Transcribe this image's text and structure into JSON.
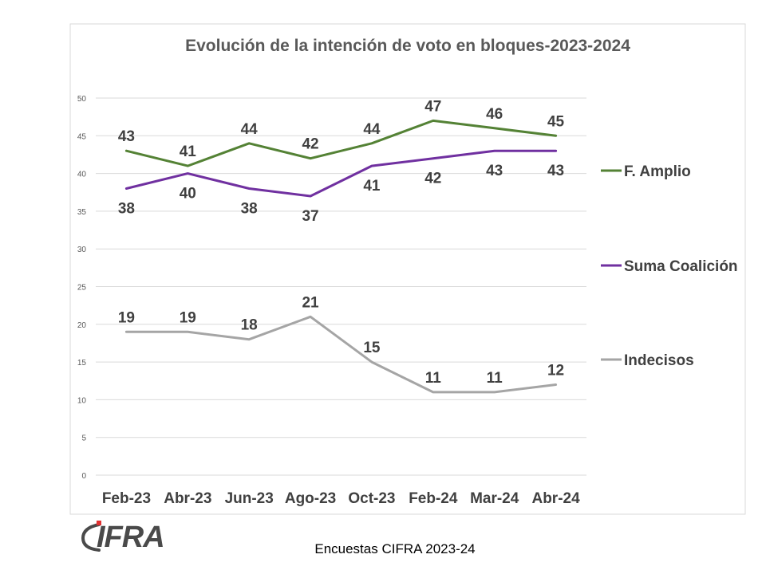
{
  "logo": {
    "text": "CIFRA",
    "accent_color": "#e03030"
  },
  "footer": {
    "text": "Encuestas CIFRA 2023-24"
  },
  "chart_data": {
    "type": "line",
    "title": "Evolución de la intención de voto en bloques-2023-2024",
    "xlabel": "",
    "ylabel": "",
    "categories": [
      "Feb-23",
      "Abr-23",
      "Jun-23",
      "Ago-23",
      "Oct-23",
      "Feb-24",
      "Mar-24",
      "Abr-24"
    ],
    "ylim": [
      0,
      50
    ],
    "yticks": [
      0,
      5,
      10,
      15,
      20,
      25,
      30,
      35,
      40,
      45,
      50
    ],
    "grid": true,
    "legend_position": "right",
    "series": [
      {
        "name": "F. Amplio",
        "color": "#548235",
        "label_position": "above",
        "values": [
          43,
          41,
          44,
          42,
          44,
          47,
          46,
          45
        ]
      },
      {
        "name": "Suma Coalición",
        "color": "#7030a0",
        "label_position": "below",
        "values": [
          38,
          40,
          38,
          37,
          41,
          42,
          43,
          43
        ]
      },
      {
        "name": "Indecisos",
        "color": "#a5a5a5",
        "label_position": "above",
        "values": [
          19,
          19,
          18,
          21,
          15,
          11,
          11,
          12
        ]
      }
    ]
  }
}
